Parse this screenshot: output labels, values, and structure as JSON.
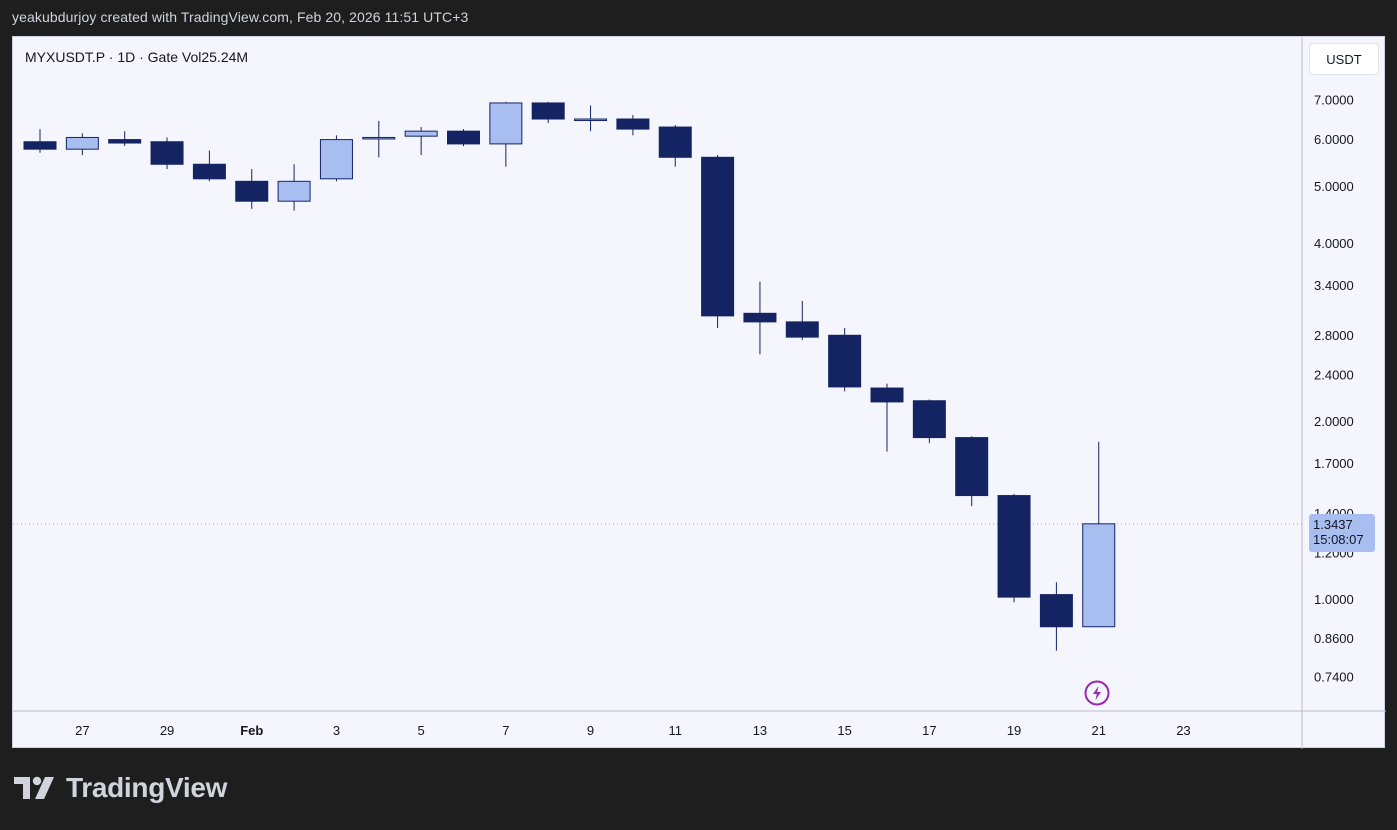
{
  "header": {
    "attribution": "yeakubdurjoy created with TradingView.com, Feb 20, 2026 11:51 UTC+3"
  },
  "chart_data": {
    "type": "candlestick",
    "symbol_line": "MYXUSDT.P · 1D · Gate  Vol25.24M",
    "currency": "USDT",
    "y_scale": "log",
    "y_ticks": [
      "7.0000",
      "6.0000",
      "5.0000",
      "4.0000",
      "3.4000",
      "2.8000",
      "2.4000",
      "2.0000",
      "1.7000",
      "1.4000",
      "1.2000",
      "1.0000",
      "0.8600",
      "0.7400"
    ],
    "x_ticks": [
      "27",
      "29",
      "Feb",
      "3",
      "5",
      "7",
      "9",
      "11",
      "13",
      "15",
      "17",
      "19",
      "21",
      "23"
    ],
    "current_price": "1.3437",
    "countdown": "15:08:07",
    "colors": {
      "up": "#a8bdf0",
      "down": "#142463",
      "wick": "#142463"
    },
    "candles": [
      {
        "date": "Jan 26",
        "open": 5.95,
        "high": 6.25,
        "low": 5.7,
        "close": 5.78
      },
      {
        "date": "Jan 27",
        "open": 5.78,
        "high": 6.15,
        "low": 5.65,
        "close": 6.05
      },
      {
        "date": "Jan 28",
        "open": 6.0,
        "high": 6.2,
        "low": 5.85,
        "close": 5.92
      },
      {
        "date": "Jan 29",
        "open": 5.95,
        "high": 6.05,
        "low": 5.35,
        "close": 5.45
      },
      {
        "date": "Jan 30",
        "open": 5.45,
        "high": 5.75,
        "low": 5.1,
        "close": 5.15
      },
      {
        "date": "Jan 31",
        "open": 5.1,
        "high": 5.35,
        "low": 4.58,
        "close": 4.72
      },
      {
        "date": "Feb 1",
        "open": 4.72,
        "high": 5.45,
        "low": 4.55,
        "close": 5.1
      },
      {
        "date": "Feb 2",
        "open": 5.15,
        "high": 6.1,
        "low": 5.1,
        "close": 6.0
      },
      {
        "date": "Feb 3",
        "open": 6.05,
        "high": 6.45,
        "low": 5.6,
        "close": 6.05
      },
      {
        "date": "Feb 4",
        "open": 6.08,
        "high": 6.3,
        "low": 5.65,
        "close": 6.2
      },
      {
        "date": "Feb 5",
        "open": 6.2,
        "high": 6.25,
        "low": 5.85,
        "close": 5.9
      },
      {
        "date": "Feb 6",
        "open": 5.9,
        "high": 6.95,
        "low": 5.4,
        "close": 6.92
      },
      {
        "date": "Feb 7",
        "open": 6.92,
        "high": 6.95,
        "low": 6.4,
        "close": 6.5
      },
      {
        "date": "Feb 8",
        "open": 6.5,
        "high": 6.85,
        "low": 6.2,
        "close": 6.5
      },
      {
        "date": "Feb 9",
        "open": 6.5,
        "high": 6.6,
        "low": 6.1,
        "close": 6.25
      },
      {
        "date": "Feb 10",
        "open": 6.3,
        "high": 6.35,
        "low": 5.4,
        "close": 5.6
      },
      {
        "date": "Feb 11",
        "open": 5.6,
        "high": 5.65,
        "low": 2.88,
        "close": 3.02
      },
      {
        "date": "Feb 12",
        "open": 3.05,
        "high": 3.45,
        "low": 2.6,
        "close": 2.95
      },
      {
        "date": "Feb 13",
        "open": 2.95,
        "high": 3.2,
        "low": 2.75,
        "close": 2.78
      },
      {
        "date": "Feb 14",
        "open": 2.8,
        "high": 2.88,
        "low": 2.25,
        "close": 2.29
      },
      {
        "date": "Feb 15",
        "open": 2.28,
        "high": 2.32,
        "low": 1.78,
        "close": 2.16
      },
      {
        "date": "Feb 16",
        "open": 2.17,
        "high": 2.18,
        "low": 1.84,
        "close": 1.88
      },
      {
        "date": "Feb 17",
        "open": 1.88,
        "high": 1.89,
        "low": 1.44,
        "close": 1.5
      },
      {
        "date": "Feb 18",
        "open": 1.5,
        "high": 1.51,
        "low": 0.99,
        "close": 1.01
      },
      {
        "date": "Feb 19",
        "open": 1.02,
        "high": 1.07,
        "low": 0.82,
        "close": 0.9
      },
      {
        "date": "Feb 20",
        "open": 0.9,
        "high": 1.85,
        "low": 0.9,
        "close": 1.3437
      }
    ]
  },
  "branding": {
    "logo_icon": "tradingview-logo-icon",
    "logo_text": "TradingView",
    "flash_icon": "lightning-icon"
  }
}
